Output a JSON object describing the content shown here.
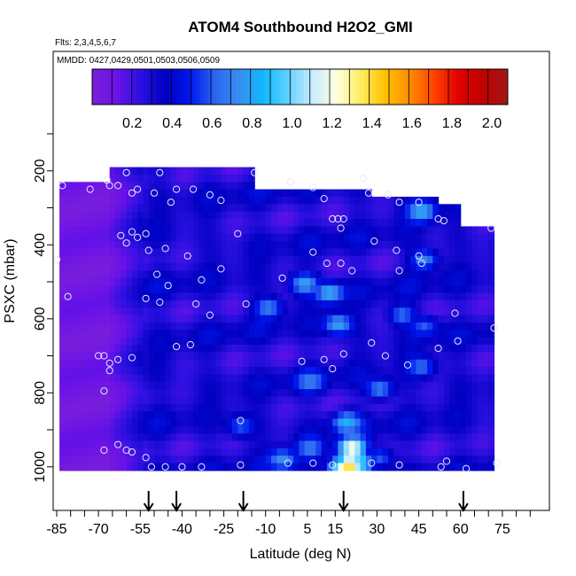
{
  "chart_data": {
    "type": "heatmap",
    "title": "ATOM4 Southbound H2O2_GMI",
    "subtitle_flights": "Flts: 2,3,4,5,6,7",
    "subtitle_dates": "MMDD: 0427,0429,0501,0503,0506,0509",
    "xlabel": "Latitude (deg N)",
    "ylabel": "PSXC (mbar)",
    "xlim": [
      -85,
      85
    ],
    "ylim": [
      1000,
      0
    ],
    "x_ticks": [
      "-85",
      "-70",
      "-55",
      "-40",
      "-25",
      "-10",
      "5",
      "15",
      "30",
      "45",
      "60",
      "75"
    ],
    "x_tick_values": [
      -85,
      -70,
      -55,
      -40,
      -25,
      -10,
      5,
      15,
      30,
      45,
      60,
      75
    ],
    "y_ticks": [
      "200",
      "400",
      "600",
      "800",
      "1000"
    ],
    "y_tick_values": [
      200,
      400,
      600,
      800,
      1000
    ],
    "colorbar": {
      "ticks": [
        "0.2",
        "0.4",
        "0.6",
        "0.8",
        "1.0",
        "1.2",
        "1.4",
        "1.6",
        "1.8",
        "2.0"
      ],
      "tick_values": [
        0.2,
        0.4,
        0.6,
        0.8,
        1.0,
        1.2,
        1.4,
        1.6,
        1.8,
        2.0
      ],
      "range": [
        0.0,
        2.08
      ],
      "colors": [
        "#7a1fd9",
        "#6a12e8",
        "#2a10e0",
        "#0000c0",
        "#0018ee",
        "#2a64f0",
        "#3a8df0",
        "#10b8ff",
        "#60d0ff",
        "#c8ecff",
        "#ffffe0",
        "#ffee60",
        "#ffc000",
        "#ff8c00",
        "#ff4000",
        "#e00000",
        "#c00000",
        "#a01818"
      ]
    },
    "arrows_latitude": [
      -52,
      -42,
      -18,
      18,
      61
    ],
    "field": {
      "lat_start": -84,
      "lat_step": 2,
      "pressure_start": 190,
      "pressure_step": 20,
      "data_extent": [
        {
          "lat_min": -66,
          "lat_max": -15,
          "p_top": 190,
          "p_bottom": 1000
        },
        {
          "lat_min": -85,
          "lat_max": -66,
          "p_top": 230,
          "p_bottom": 570
        },
        {
          "lat_min": -84,
          "lat_max": 27,
          "p_top": 235,
          "p_bottom": 1000
        },
        {
          "lat_min": -15,
          "lat_max": 51,
          "p_top": 255,
          "p_bottom": 1000
        },
        {
          "lat_min": 51,
          "lat_max": 59,
          "p_top": 285,
          "p_bottom": 1000
        },
        {
          "lat_min": 59,
          "lat_max": 72,
          "p_top": 335,
          "p_bottom": 1000
        }
      ],
      "hotspots": [
        {
          "lat": 20,
          "p": 940,
          "value": 1.3
        },
        {
          "lat": 19,
          "p": 985,
          "value": 1.45
        },
        {
          "lat": 17,
          "p": 990,
          "value": 1.25
        },
        {
          "lat": 22,
          "p": 980,
          "value": 1.1
        },
        {
          "lat": 18,
          "p": 870,
          "value": 0.85
        },
        {
          "lat": 3,
          "p": 495,
          "value": 0.8
        },
        {
          "lat": 12,
          "p": 520,
          "value": 0.85
        },
        {
          "lat": -10,
          "p": 560,
          "value": 0.7
        },
        {
          "lat": 15,
          "p": 605,
          "value": 0.8
        },
        {
          "lat": 38,
          "p": 580,
          "value": 0.65
        },
        {
          "lat": 5,
          "p": 760,
          "value": 0.7
        },
        {
          "lat": 30,
          "p": 780,
          "value": 0.7
        },
        {
          "lat": 45,
          "p": 720,
          "value": 0.65
        },
        {
          "lat": 45,
          "p": 300,
          "value": 0.85
        },
        {
          "lat": 46,
          "p": 430,
          "value": 0.7
        },
        {
          "lat": 46,
          "p": 610,
          "value": 0.6
        },
        {
          "lat": -5,
          "p": 970,
          "value": 0.75
        },
        {
          "lat": 30,
          "p": 965,
          "value": 0.6
        },
        {
          "lat": -20,
          "p": 880,
          "value": 0.6
        },
        {
          "lat": 5,
          "p": 940,
          "value": 0.7
        }
      ]
    },
    "observations": [
      {
        "lat": -83,
        "p": 240
      },
      {
        "lat": -73,
        "p": 250
      },
      {
        "lat": -67,
        "p": 225
      },
      {
        "lat": -66,
        "p": 240
      },
      {
        "lat": -63,
        "p": 240
      },
      {
        "lat": -60,
        "p": 205
      },
      {
        "lat": -58,
        "p": 260
      },
      {
        "lat": -56,
        "p": 250
      },
      {
        "lat": -50,
        "p": 260
      },
      {
        "lat": -48,
        "p": 205
      },
      {
        "lat": -44,
        "p": 285
      },
      {
        "lat": -42,
        "p": 250
      },
      {
        "lat": -36,
        "p": 250
      },
      {
        "lat": -30,
        "p": 265
      },
      {
        "lat": -26,
        "p": 280
      },
      {
        "lat": -14,
        "p": 205
      },
      {
        "lat": -1,
        "p": 230
      },
      {
        "lat": 7,
        "p": 245
      },
      {
        "lat": 11,
        "p": 275
      },
      {
        "lat": 25,
        "p": 220
      },
      {
        "lat": 27,
        "p": 260
      },
      {
        "lat": 34,
        "p": 265
      },
      {
        "lat": 38,
        "p": 285
      },
      {
        "lat": 45,
        "p": 285
      },
      {
        "lat": 52,
        "p": 330
      },
      {
        "lat": -62,
        "p": 375
      },
      {
        "lat": -58,
        "p": 365
      },
      {
        "lat": -56,
        "p": 380
      },
      {
        "lat": -53,
        "p": 370
      },
      {
        "lat": -60,
        "p": 395
      },
      {
        "lat": -52,
        "p": 415
      },
      {
        "lat": -46,
        "p": 410
      },
      {
        "lat": -38,
        "p": 430
      },
      {
        "lat": -20,
        "p": 370
      },
      {
        "lat": 14,
        "p": 330
      },
      {
        "lat": 16,
        "p": 330
      },
      {
        "lat": 17,
        "p": 355
      },
      {
        "lat": 18,
        "p": 330
      },
      {
        "lat": 29,
        "p": 390
      },
      {
        "lat": 37,
        "p": 415
      },
      {
        "lat": 45,
        "p": 430
      },
      {
        "lat": 54,
        "p": 335
      },
      {
        "lat": 71,
        "p": 355
      },
      {
        "lat": -85,
        "p": 440
      },
      {
        "lat": -49,
        "p": 480
      },
      {
        "lat": -45,
        "p": 510
      },
      {
        "lat": -33,
        "p": 495
      },
      {
        "lat": -26,
        "p": 465
      },
      {
        "lat": -4,
        "p": 490
      },
      {
        "lat": 7,
        "p": 420
      },
      {
        "lat": 12,
        "p": 450
      },
      {
        "lat": 17,
        "p": 450
      },
      {
        "lat": 21,
        "p": 470
      },
      {
        "lat": 38,
        "p": 470
      },
      {
        "lat": 46,
        "p": 450
      },
      {
        "lat": -81,
        "p": 540
      },
      {
        "lat": -53,
        "p": 545
      },
      {
        "lat": -48,
        "p": 555
      },
      {
        "lat": -35,
        "p": 560
      },
      {
        "lat": -30,
        "p": 590
      },
      {
        "lat": -17,
        "p": 560
      },
      {
        "lat": 58,
        "p": 585
      },
      {
        "lat": 72,
        "p": 625
      },
      {
        "lat": -42,
        "p": 675
      },
      {
        "lat": -37,
        "p": 670
      },
      {
        "lat": 28,
        "p": 665
      },
      {
        "lat": 33,
        "p": 700
      },
      {
        "lat": 41,
        "p": 725
      },
      {
        "lat": 52,
        "p": 680
      },
      {
        "lat": 59,
        "p": 660
      },
      {
        "lat": -70,
        "p": 700
      },
      {
        "lat": -68,
        "p": 700
      },
      {
        "lat": -66,
        "p": 720
      },
      {
        "lat": -66,
        "p": 740
      },
      {
        "lat": -63,
        "p": 710
      },
      {
        "lat": -58,
        "p": 705
      },
      {
        "lat": 3,
        "p": 715
      },
      {
        "lat": 11,
        "p": 710
      },
      {
        "lat": 14,
        "p": 735
      },
      {
        "lat": -68,
        "p": 795
      },
      {
        "lat": 18,
        "p": 695
      },
      {
        "lat": -19,
        "p": 875
      },
      {
        "lat": -68,
        "p": 955
      },
      {
        "lat": -63,
        "p": 940
      },
      {
        "lat": -60,
        "p": 955
      },
      {
        "lat": -58,
        "p": 960
      },
      {
        "lat": -53,
        "p": 975
      },
      {
        "lat": -51,
        "p": 1000
      },
      {
        "lat": -46,
        "p": 1000
      },
      {
        "lat": -40,
        "p": 1000
      },
      {
        "lat": -33,
        "p": 1000
      },
      {
        "lat": -19,
        "p": 995
      },
      {
        "lat": -2,
        "p": 990
      },
      {
        "lat": 7,
        "p": 990
      },
      {
        "lat": 14,
        "p": 995
      },
      {
        "lat": 28,
        "p": 990
      },
      {
        "lat": 38,
        "p": 995
      },
      {
        "lat": 53,
        "p": 1000
      },
      {
        "lat": 55,
        "p": 985
      },
      {
        "lat": 73,
        "p": 990
      },
      {
        "lat": 62,
        "p": 1005
      }
    ]
  }
}
